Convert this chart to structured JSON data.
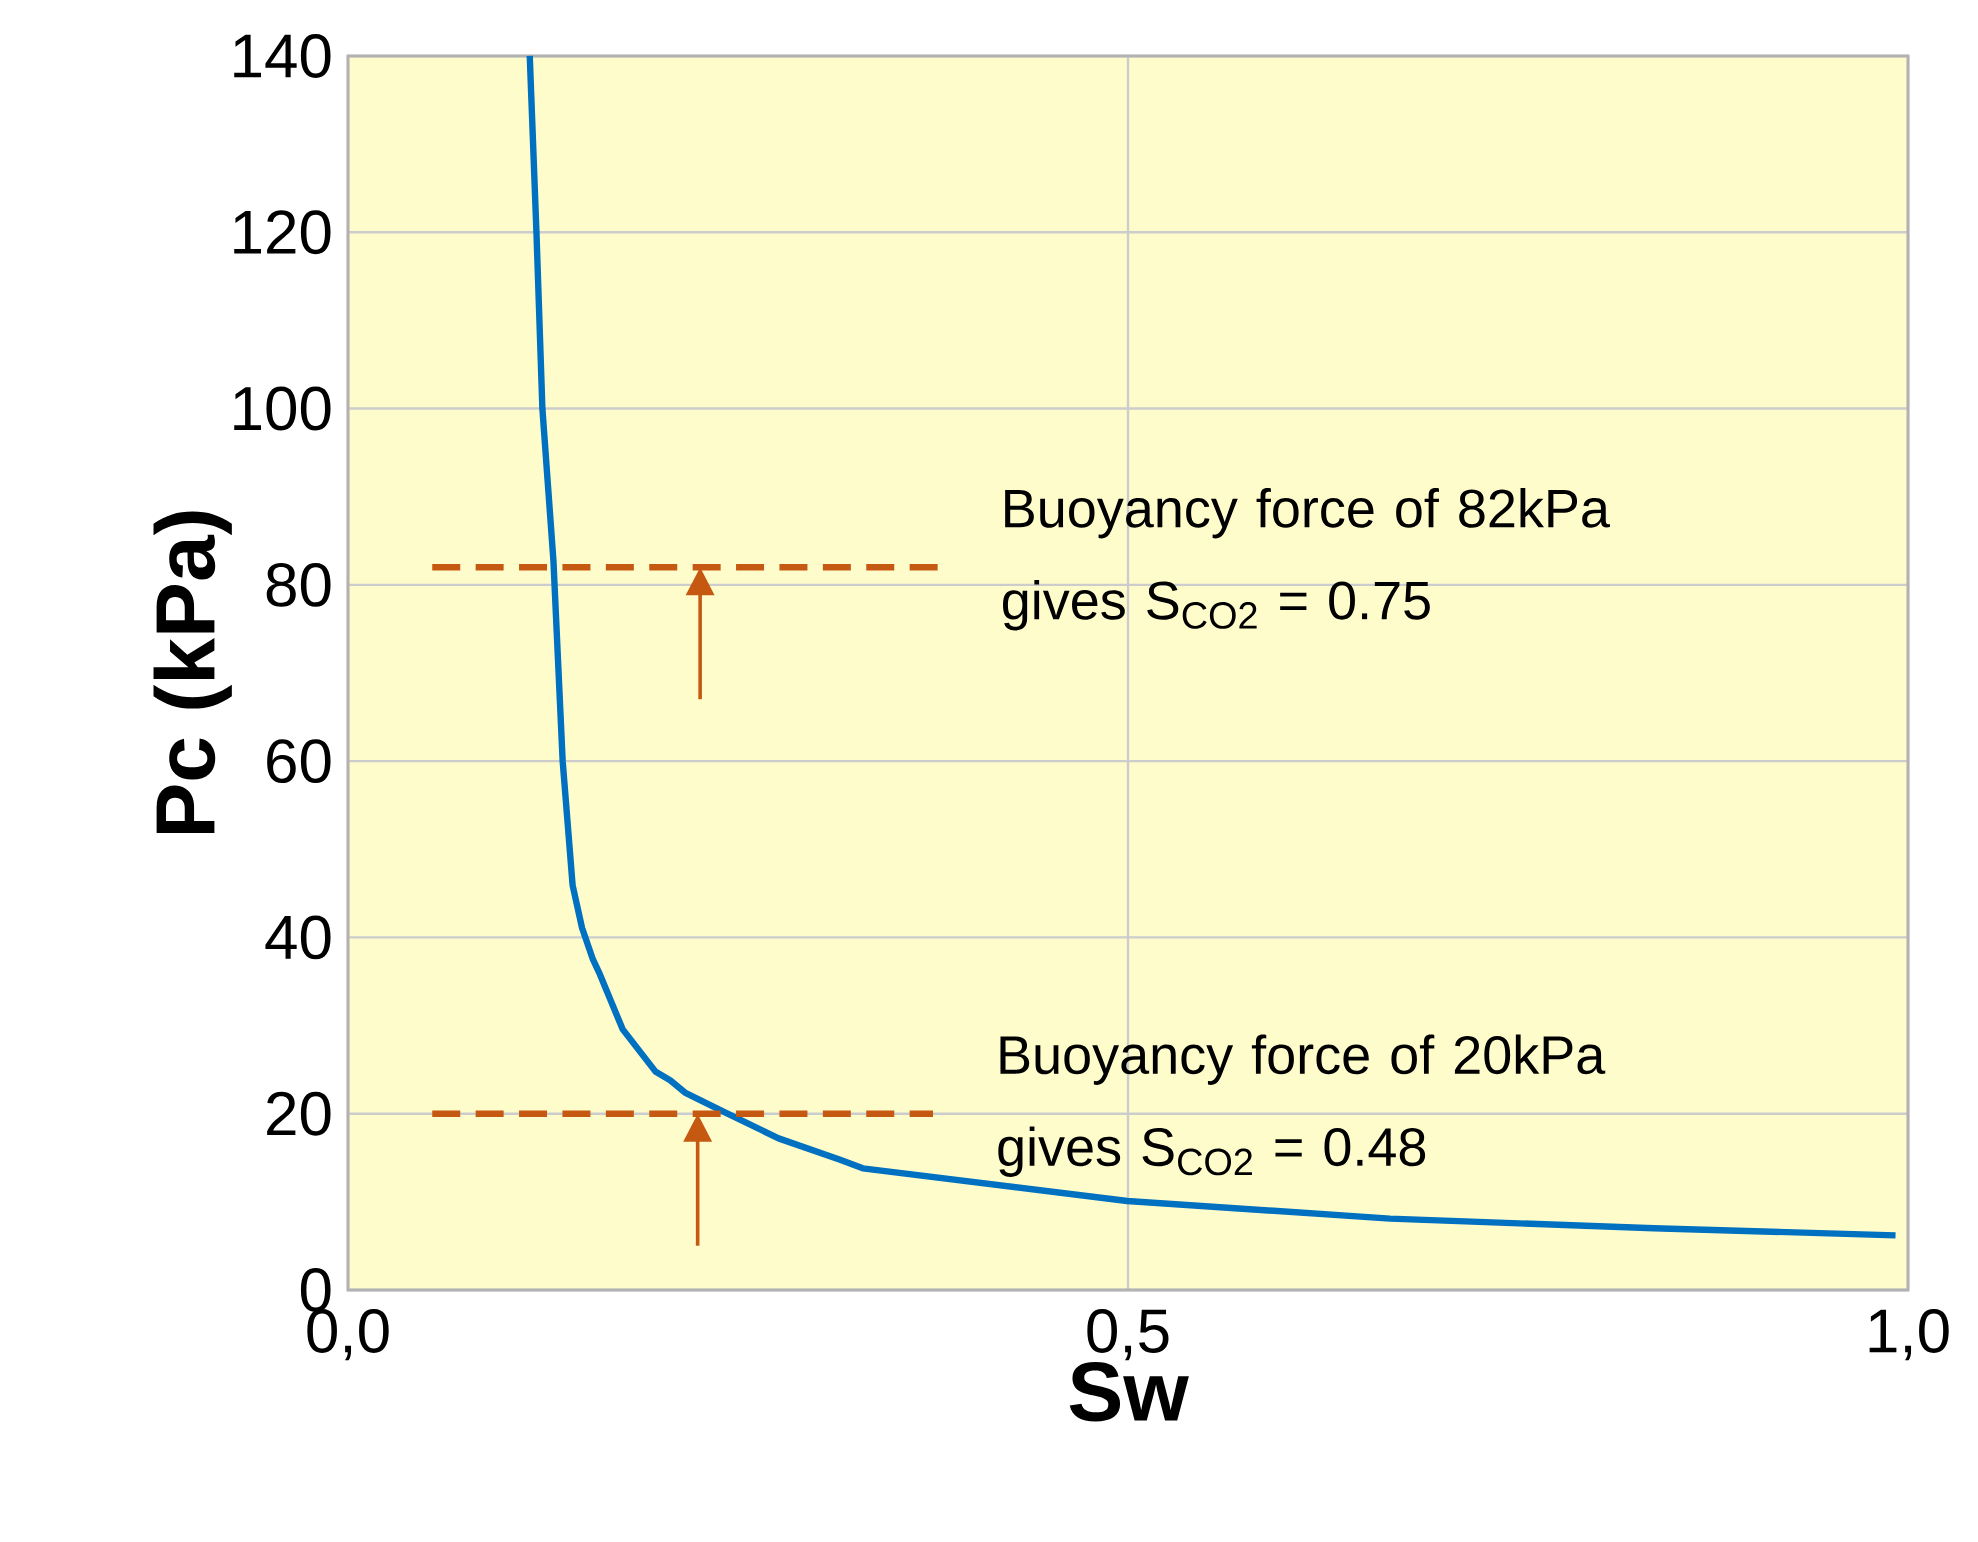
{
  "chart_data": {
    "type": "line",
    "xlabel": "Sw",
    "ylabel": "Pc (kPa)",
    "xlim": [
      0,
      1
    ],
    "ylim": [
      0,
      140
    ],
    "xticks": [
      {
        "value": 0,
        "label": "0,0"
      },
      {
        "value": 0.5,
        "label": "0,5"
      },
      {
        "value": 1,
        "label": "1,0"
      }
    ],
    "yticks": [
      0,
      20,
      40,
      60,
      80,
      100,
      120,
      140
    ],
    "grid": true,
    "marker": "none",
    "series": [
      {
        "color": "#0070c0",
        "x": [
          0.1165,
          0.1208,
          0.1246,
          0.1317,
          0.1376,
          0.144,
          0.15,
          0.157,
          0.1615,
          0.176,
          0.197,
          0.2065,
          0.216,
          0.24,
          0.276,
          0.315,
          0.33,
          0.4995,
          0.668,
          0.837,
          0.992
        ],
        "values": [
          140,
          120,
          100,
          82.7,
          60,
          45.9,
          41.1,
          37.5,
          35.8,
          29.6,
          24.8,
          23.8,
          22.4,
          20.3,
          17.2,
          14.8,
          13.8,
          10.1,
          8.1,
          7.0,
          6.2
        ]
      },
      {
        "color": "#c65911",
        "line_style": "dashed",
        "x": [
          0.054,
          0.378
        ],
        "values": [
          82,
          82
        ]
      },
      {
        "color": "#c65911",
        "line_style": "dashed",
        "x": [
          0.054,
          0.375
        ],
        "values": [
          20,
          20
        ]
      }
    ],
    "annotations": [
      "Buoyancy force of 82kPa gives S$_{CO2}$ = 0.75",
      "Buoyancy force of 20kPa gives S$_{CO2}$ = 0.48"
    ]
  }
}
